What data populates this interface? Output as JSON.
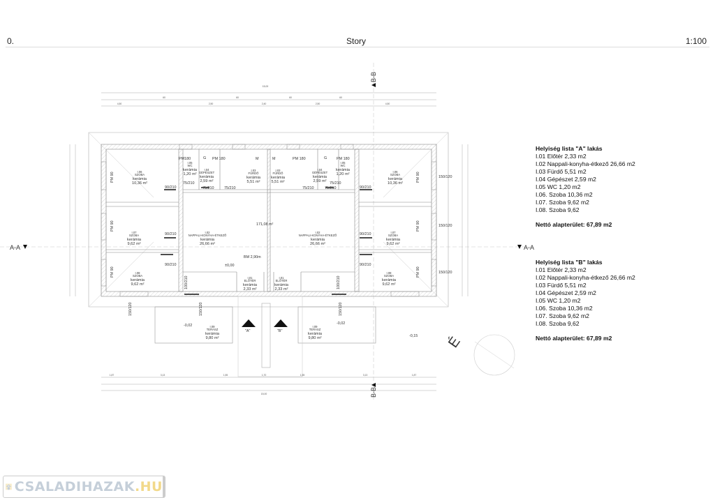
{
  "header": {
    "story_number": "0.",
    "title": "Story",
    "scale": "1:100"
  },
  "sections": {
    "aa_left": "A-A",
    "aa_right": "A-A",
    "bb_top": "B-B",
    "bb_bottom": "B-B"
  },
  "compass_label": "É",
  "plan": {
    "total_area": "171,08 m²",
    "ceiling_height": "BM 2,90m",
    "level_zero": "±0,00",
    "level_terrace_left": "-0,02",
    "level_terrace_right": "-0,02",
    "level_ground": "-0,15",
    "entrance_a": "\"A\"",
    "entrance_b": "\"B\"",
    "rooms": [
      {
        "code": "I.06",
        "name": "SZOBA",
        "floor": "kerámia",
        "area": "10,36 m²"
      },
      {
        "code": "I.07",
        "name": "SZOBA",
        "floor": "kerámia",
        "area": "9,62 m²"
      },
      {
        "code": "I.08",
        "name": "SZOBA",
        "floor": "kerámia",
        "area": "9,62 m²"
      },
      {
        "code": "I.05",
        "name": "WC",
        "floor": "kerámia",
        "area": "1,20 m²"
      },
      {
        "code": "I.04",
        "name": "GÉPÉSZET",
        "floor": "kerámia",
        "area": "2,59 m²"
      },
      {
        "code": "I.03",
        "name": "FÜRDŐ",
        "floor": "kerámia",
        "area": "5,51 m²"
      },
      {
        "code": "I.02",
        "name": "NAPPALI-KONYHA-ÉTKEZŐ",
        "floor": "kerámia",
        "area": "26,66 m²"
      },
      {
        "code": "I.01",
        "name": "ELŐTÉR",
        "floor": "kerámia",
        "area": "2,33 m²"
      },
      {
        "code": "I.03",
        "name": "FÜRDŐ",
        "floor": "kerámia",
        "area": "5,51 m²"
      },
      {
        "code": "I.04",
        "name": "GÉPÉSZET",
        "floor": "kerámia",
        "area": "2,59 m²"
      },
      {
        "code": "I.05",
        "name": "WC",
        "floor": "kerámia",
        "area": "1,20 m²"
      },
      {
        "code": "I.06",
        "name": "SZOBA",
        "floor": "kerámia",
        "area": "10,36 m²"
      },
      {
        "code": "I.02",
        "name": "NAPPALI-KONYHA-ÉTKEZŐ",
        "floor": "kerámia",
        "area": "26,66 m²"
      },
      {
        "code": "I.07",
        "name": "SZOBA",
        "floor": "kerámia",
        "area": "9,62 m²"
      },
      {
        "code": "I.01",
        "name": "ELŐTÉR",
        "floor": "kerámia",
        "area": "2,33 m²"
      },
      {
        "code": "I.08",
        "name": "SZOBA",
        "floor": "kerámia",
        "area": "9,62 m²"
      },
      {
        "code": "I.09",
        "name": "TERASZ",
        "floor": "kerámia",
        "area": "9,80 m²"
      },
      {
        "code": "I.09",
        "name": "TERASZ",
        "floor": "kerámia",
        "area": "9,80 m²"
      }
    ],
    "openings": [
      "PM 90",
      "PM 90",
      "PM 90",
      "PM 90",
      "PM 90",
      "PM 90",
      "PM180",
      "PM 180",
      "PM 180",
      "PM 180",
      "G",
      "M",
      "M",
      "G",
      "90/210",
      "90/210",
      "90/210",
      "90/210",
      "90/210",
      "90/210",
      "75/210",
      "75/210",
      "75/210",
      "75/210",
      "75/210",
      "75/210",
      "150/120",
      "150/120",
      "150/120",
      "150/120",
      "150/120",
      "150/120",
      "100/210",
      "100/210"
    ],
    "dimensions_top": [
      "4,50",
      "60",
      "2,50",
      "60",
      "2,40",
      "60",
      "2,50",
      "60",
      "4,50",
      "15,00"
    ],
    "dimensions_bottom": [
      "1,87",
      "3,13",
      "1,55",
      "1,70",
      "1,55",
      "3,13",
      "1,87",
      "15,00"
    ]
  },
  "room_list_a": {
    "title": "Helyiség lista \"A\" lakás",
    "items": [
      "I.01 Előtér 2,33 m2",
      "I.02 Nappali-konyha-étkező 26,66 m2",
      "I.03 Fürdő 5,51 m2",
      "I.04 Gépészet 2,59 m2",
      "I.05 WC 1,20 m2",
      "I.06. Szoba 10,36 m2",
      "I.07. Szoba 9,62 m2",
      "I.08. Szoba 9,62"
    ],
    "net_area": "Nettó alapterület: 67,89 m2"
  },
  "room_list_b": {
    "title": "Helyiség lista \"B\" lakás",
    "items": [
      "I.01 Előtér 2,33 m2",
      "I.02 Nappali-konyha-étkező 26,66 m2",
      "I.03 Fürdő 5,51 m2",
      "I.04 Gépészet 2,59 m2",
      "I.05 WC 1,20 m2",
      "I.06. Szoba 10,36 m2",
      "I.07. Szoba 9,62 m2",
      "I.08. Szoba 9,62"
    ],
    "net_area": "Nettó alapterület: 67,89 m2"
  },
  "watermark": {
    "text": "CSALADIHAZAK",
    "suffix": ".HU"
  },
  "colors": {
    "line": "#888888",
    "wall_hatch": "#bbbbbb",
    "logo_text": "#c5cfd9",
    "logo_accent": "#f2d98a"
  }
}
